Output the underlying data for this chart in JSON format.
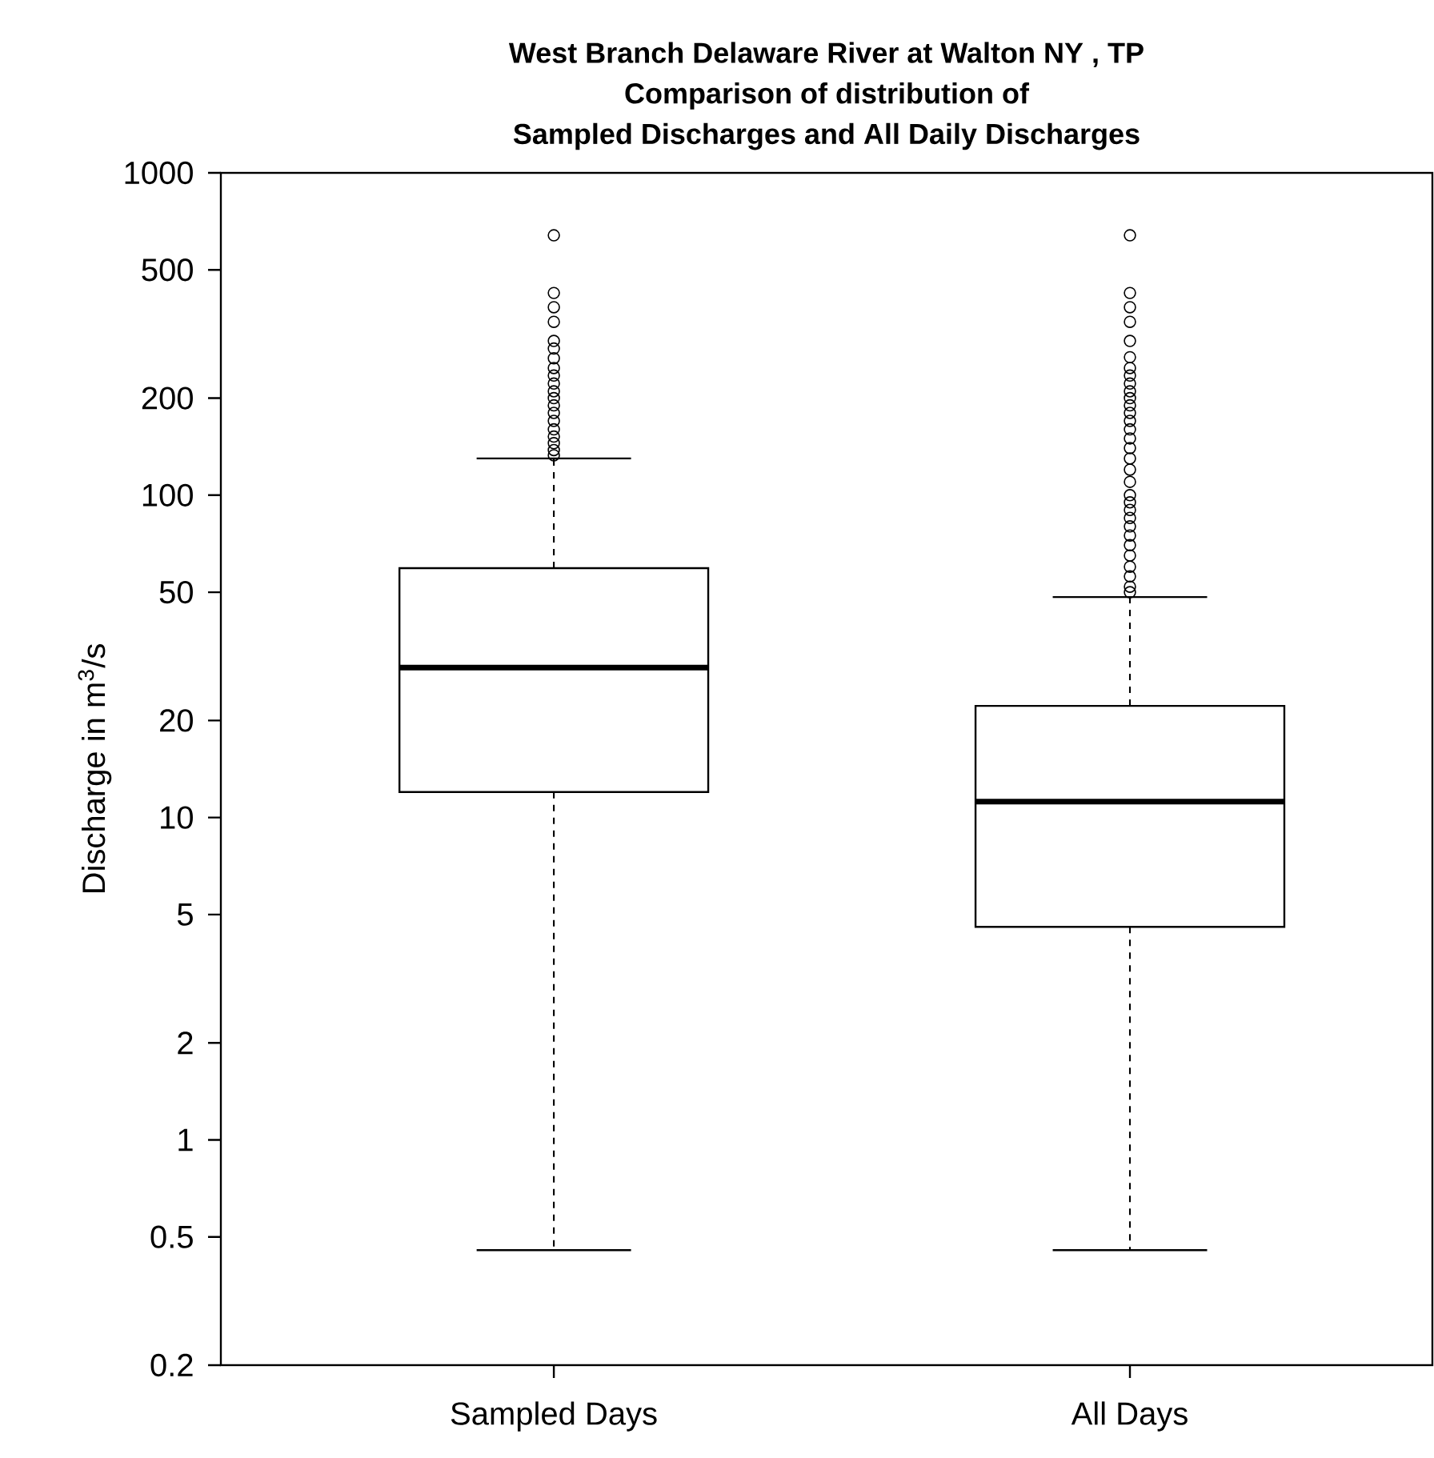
{
  "chart_data": {
    "type": "box",
    "title": "West Branch Delaware River at Walton NY , TP",
    "subtitle": "Comparison of distribution of Sampled Discharges and All Daily Discharges",
    "ylabel": "Discharge in m$^{3}$/s",
    "categories": [
      "Sampled Days",
      "All Days"
    ],
    "boxes": [
      {
        "low": 0.455,
        "q1": 12.0,
        "median": 29.2,
        "q3": 59.4,
        "high": 130,
        "outliers": [
          640,
          424,
          383,
          345,
          301,
          285,
          266,
          248,
          235,
          222,
          210,
          200,
          190,
          180,
          170,
          160,
          152,
          145,
          138,
          133
        ]
      },
      {
        "low": 0.455,
        "q1": 4.58,
        "median": 11.2,
        "q3": 22.2,
        "high": 48.3,
        "outliers": [
          640,
          424,
          383,
          345,
          301,
          268,
          248,
          235,
          222,
          210,
          200,
          190,
          180,
          170,
          160,
          150,
          140,
          130,
          120,
          110,
          100,
          95,
          90,
          85,
          80,
          75,
          70,
          65,
          60,
          56,
          52,
          50
        ]
      }
    ],
    "log": true,
    "ylim": [
      0.2,
      1000
    ],
    "yticks": [
      0.2,
      0.5,
      1,
      2,
      5,
      10,
      20,
      50,
      100,
      200,
      500,
      1000
    ],
    "marker": "circle"
  }
}
